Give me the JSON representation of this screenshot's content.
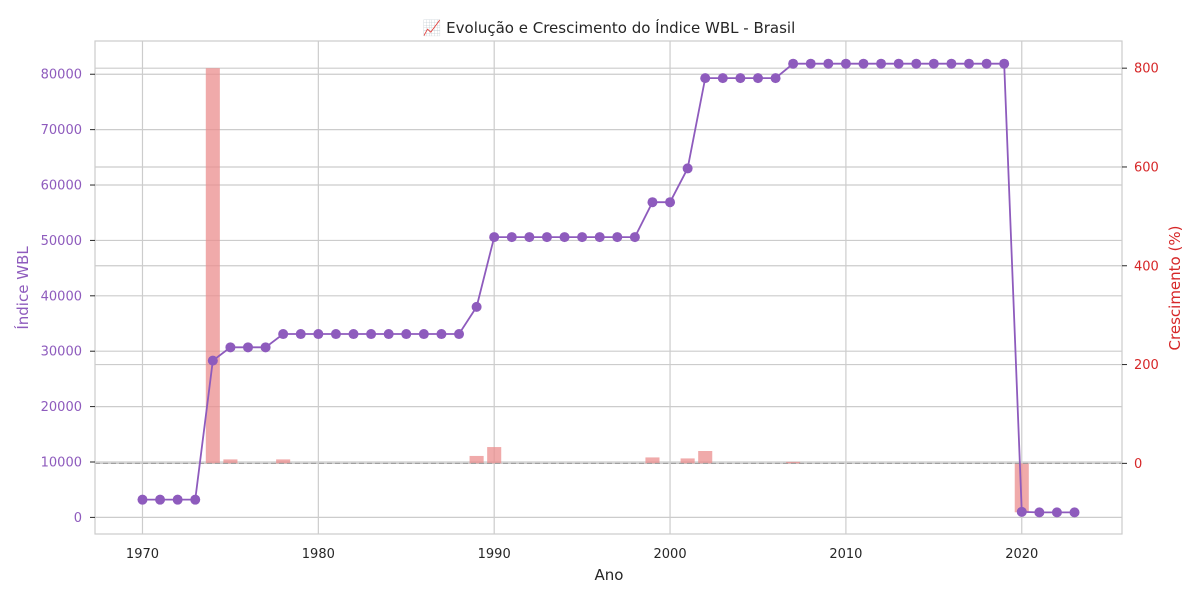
{
  "chart_data": {
    "type": "line",
    "title": "📈 Evolução e Crescimento do Índice WBL - Brasil",
    "xlabel": "Ano",
    "ylabel": "Índice WBL",
    "ylabel_right": "Crescimento (%)",
    "xlim": [
      1967.3,
      2025.7
    ],
    "ylim": [
      -3000,
      86000
    ],
    "ylim_right": [
      -143,
      855
    ],
    "x_ticks": [
      1970,
      1980,
      1990,
      2000,
      2010,
      2020
    ],
    "y_ticks": [
      0,
      10000,
      20000,
      30000,
      40000,
      50000,
      60000,
      70000,
      80000
    ],
    "y_ticks_right": [
      0,
      200,
      400,
      600,
      800
    ],
    "grid": true,
    "colors": {
      "line": "#8e5bbd",
      "bars": "#eb8d8d",
      "right_axis": "#d62728",
      "grid": "#cccccc"
    },
    "series": [
      {
        "axis": "left",
        "kind": "line",
        "x": [
          1970,
          1971,
          1972,
          1973,
          1974,
          1975,
          1976,
          1977,
          1978,
          1979,
          1980,
          1981,
          1982,
          1983,
          1984,
          1985,
          1986,
          1987,
          1988,
          1989,
          1990,
          1991,
          1992,
          1993,
          1994,
          1995,
          1996,
          1997,
          1998,
          1999,
          2000,
          2001,
          2002,
          2003,
          2004,
          2005,
          2006,
          2007,
          2008,
          2009,
          2010,
          2011,
          2012,
          2013,
          2014,
          2015,
          2016,
          2017,
          2018,
          2019,
          2020,
          2021,
          2022,
          2023
        ],
        "values": [
          3200,
          3200,
          3200,
          3200,
          28300,
          30700,
          30700,
          30700,
          33100,
          33100,
          33100,
          33100,
          33100,
          33100,
          33100,
          33100,
          33100,
          33100,
          33100,
          38000,
          50600,
          50600,
          50600,
          50600,
          50600,
          50600,
          50600,
          50600,
          50600,
          56900,
          56900,
          63000,
          79300,
          79300,
          79300,
          79300,
          79300,
          81900,
          81900,
          81900,
          81900,
          81900,
          81900,
          81900,
          81900,
          81900,
          81900,
          81900,
          81900,
          81900,
          1000,
          900,
          900,
          900
        ]
      },
      {
        "axis": "right",
        "kind": "bar",
        "x": [
          1974,
          1975,
          1978,
          1989,
          1990,
          1999,
          2001,
          2002,
          2007,
          2020
        ],
        "values": [
          800,
          8,
          8,
          15,
          33,
          12,
          10,
          25,
          3,
          -99
        ]
      }
    ]
  }
}
